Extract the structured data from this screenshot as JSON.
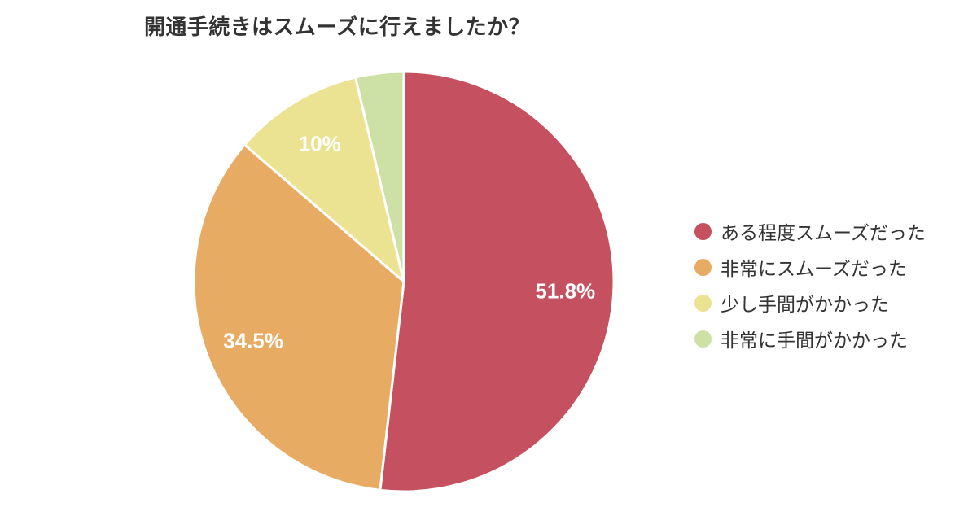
{
  "chart_data": {
    "type": "pie",
    "title": "開通手続きはスムーズに行えましたか？",
    "categories": [
      "ある程度スムーズだった",
      "非常にスムーズだった",
      "少し手間がかかった",
      "非常に手間がかかった"
    ],
    "values": [
      51.8,
      34.5,
      10,
      3.7
    ],
    "slice_labels": [
      "51.8%",
      "34.5%",
      "10%",
      ""
    ],
    "colors": [
      "#c5505f",
      "#e7ab64",
      "#ebe392",
      "#cde0a6"
    ],
    "slice_border_color": "#ffffff",
    "slice_label_color": "#ffffff",
    "title_color": "#333333",
    "legend_text_color": "#333333",
    "background_color": "#ffffff",
    "total": 100,
    "start_angle_deg": 0,
    "direction": "clockwise",
    "legend_position": "right"
  }
}
